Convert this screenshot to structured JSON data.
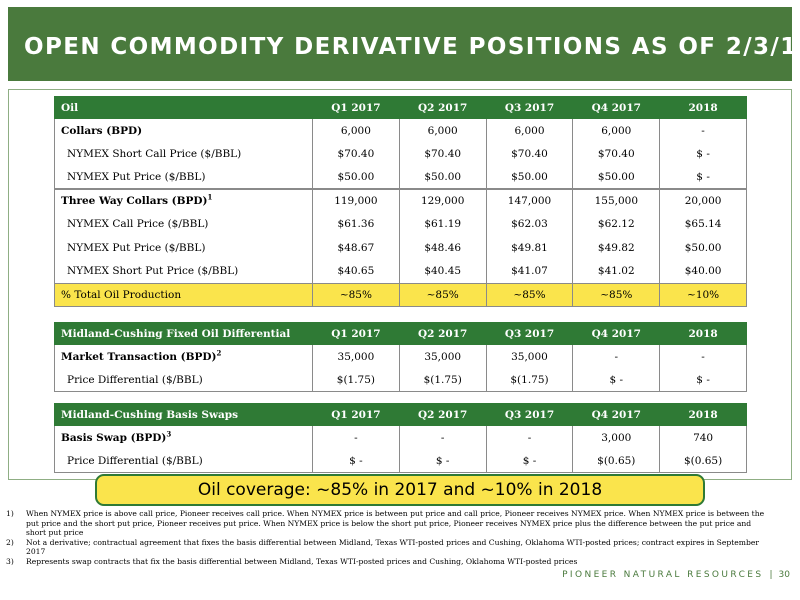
{
  "title": "OPEN COMMODITY DERIVATIVE POSITIONS AS OF 2/3/17",
  "oil_table": {
    "header": [
      "Oil",
      "Q1 2017",
      "Q2 2017",
      "Q3 2017",
      "Q4 2017",
      "2018"
    ],
    "rows": [
      {
        "label": "Collars (BPD)",
        "sup": "",
        "values": [
          "6,000",
          "6,000",
          "6,000",
          "6,000",
          "-"
        ]
      },
      {
        "label": "NYMEX Short Call Price ($/BBL)",
        "sup": "",
        "values": [
          "$70.40",
          "$70.40",
          "$70.40",
          "$70.40",
          "$ -"
        ]
      },
      {
        "label": "NYMEX Put Price ($/BBL)",
        "sup": "",
        "values": [
          "$50.00",
          "$50.00",
          "$50.00",
          "$50.00",
          "$ -"
        ]
      },
      {
        "label": "Three Way Collars (BPD)",
        "sup": "1",
        "values": [
          "119,000",
          "129,000",
          "147,000",
          "155,000",
          "20,000"
        ]
      },
      {
        "label": "NYMEX Call Price ($/BBL)",
        "sup": "",
        "values": [
          "$61.36",
          "$61.19",
          "$62.03",
          "$62.12",
          "$65.14"
        ]
      },
      {
        "label": "NYMEX Put Price ($/BBL)",
        "sup": "",
        "values": [
          "$48.67",
          "$48.46",
          "$49.81",
          "$49.82",
          "$50.00"
        ]
      },
      {
        "label": "NYMEX Short Put Price ($/BBL)",
        "sup": "",
        "values": [
          "$40.65",
          "$40.45",
          "$41.07",
          "$41.02",
          "$40.00"
        ]
      },
      {
        "label": "% Total Oil Production",
        "sup": "",
        "values": [
          "~85%",
          "~85%",
          "~85%",
          "~85%",
          "~10%"
        ]
      }
    ]
  },
  "differential_table": {
    "header": [
      "Midland-Cushing Fixed Oil Differential",
      "Q1 2017",
      "Q2 2017",
      "Q3 2017",
      "Q4 2017",
      "2018"
    ],
    "rows": [
      {
        "label": "Market Transaction (BPD)",
        "sup": "2",
        "values": [
          "35,000",
          "35,000",
          "35,000",
          "-",
          "-"
        ]
      },
      {
        "label": "Price Differential ($/BBL)",
        "sup": "",
        "values": [
          "$(1.75)",
          "$(1.75)",
          "$(1.75)",
          "$ -",
          "$ -"
        ]
      }
    ]
  },
  "basis_table": {
    "header": [
      "Midland-Cushing Basis Swaps",
      "Q1 2017",
      "Q2 2017",
      "Q3 2017",
      "Q4 2017",
      "2018"
    ],
    "rows": [
      {
        "label": "Basis Swap (BPD)",
        "sup": "3",
        "values": [
          "-",
          "-",
          "-",
          "3,000",
          "740"
        ]
      },
      {
        "label": "Price Differential ($/BBL)",
        "sup": "",
        "values": [
          "$ -",
          "$ -",
          "$ -",
          "$(0.65)",
          "$(0.65)"
        ]
      }
    ]
  },
  "coverage_text": "Oil coverage: ~85% in 2017 and ~10% in 2018",
  "footnotes": [
    {
      "num": "1)",
      "text": "When NYMEX price is above call price, Pioneer receives call price. When NYMEX price is between put price and call price, Pioneer receives NYMEX price. When NYMEX price is between the put price and the short put price, Pioneer receives put price. When NYMEX price is below the short put price, Pioneer receives NYMEX price plus the difference between the put price and short put price"
    },
    {
      "num": "2)",
      "text": "Not a derivative; contractual agreement that fixes the basis differential between Midland, Texas WTI-posted prices and Cushing, Oklahoma WTI-posted prices; contract expires in September 2017"
    },
    {
      "num": "3)",
      "text": "Represents swap contracts that fix the basis differential between Midland, Texas WTI-posted prices and Cushing, Oklahoma WTI-posted prices"
    }
  ],
  "footer": {
    "brand": "PIONEER NATURAL RESOURCES",
    "separator": "|",
    "page": "30"
  },
  "colors": {
    "title_bar": "#4a7a3d",
    "table_header": "#2f7a35",
    "highlight": "#fae44c"
  }
}
